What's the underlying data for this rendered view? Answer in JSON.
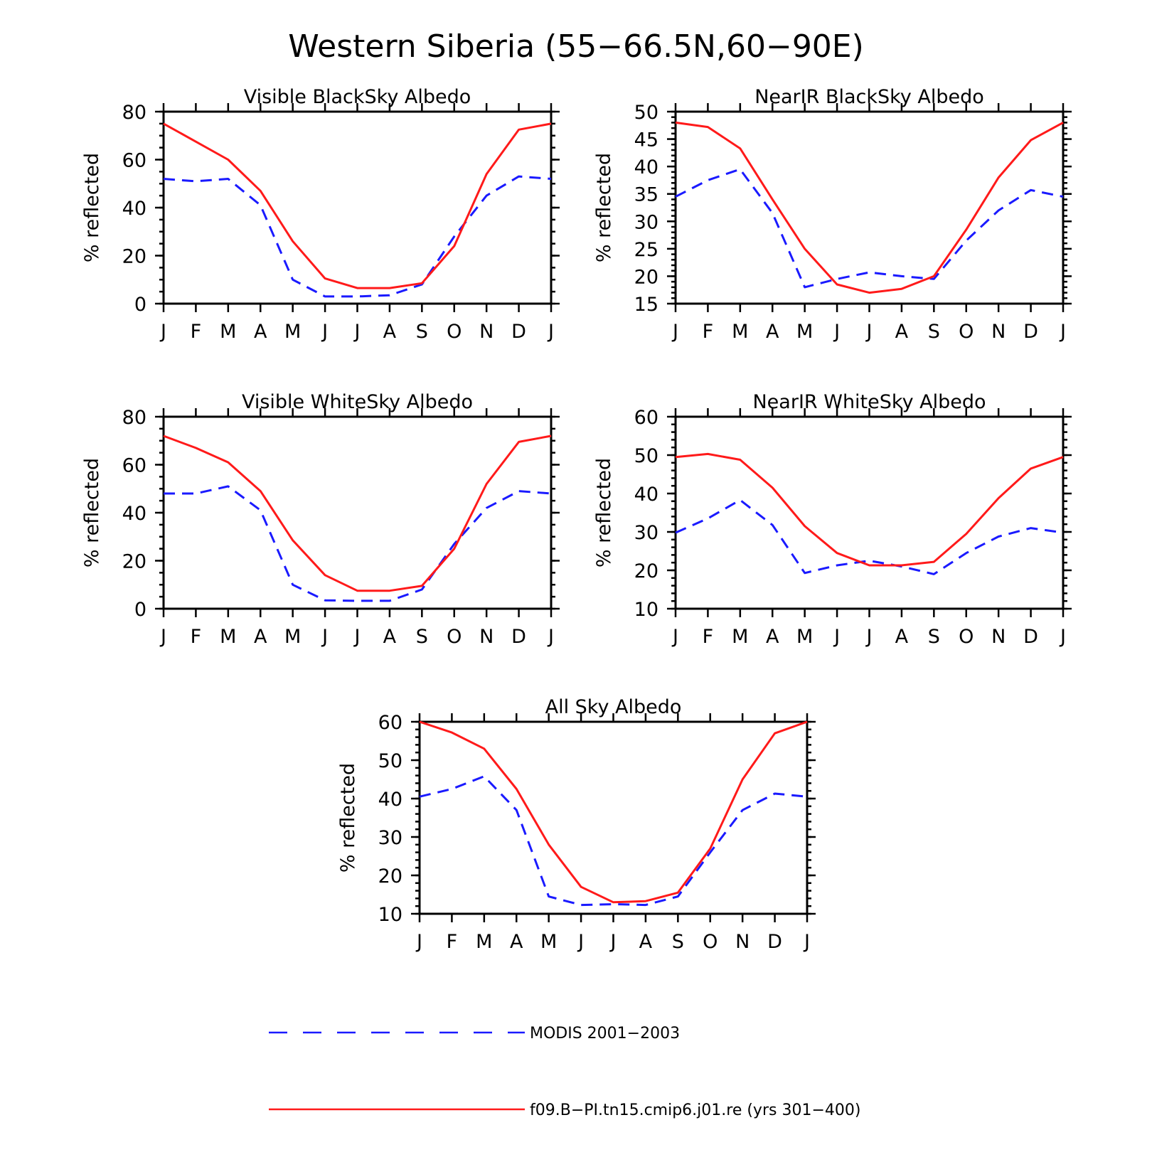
{
  "figure": {
    "title": "Western Siberia (55−66.5N,60−90E)"
  },
  "colors": {
    "modis": "#1a1aff",
    "model": "#ff1a1a"
  },
  "legend": [
    {
      "label": "MODIS 2001−2003",
      "style": "dashed",
      "color": "#1a1aff"
    },
    {
      "label": "f09.B−PI.tn15.cmip6.j01.re (yrs 301−400)",
      "style": "solid",
      "color": "#ff1a1a"
    }
  ],
  "chart_data": [
    {
      "type": "line",
      "title": "Visible BlackSky Albedo",
      "ylabel": "% reflected",
      "categories": [
        "J",
        "F",
        "M",
        "A",
        "M",
        "J",
        "J",
        "A",
        "S",
        "O",
        "N",
        "D",
        "J"
      ],
      "ylim": [
        0,
        80
      ],
      "yticks": [
        0,
        20,
        40,
        60,
        80
      ],
      "yminor": 5,
      "series": [
        {
          "name": "MODIS 2001−2003",
          "style": "dashed",
          "values": [
            52,
            51,
            52,
            41,
            10,
            3,
            3,
            3.5,
            8,
            28,
            45,
            53,
            52
          ]
        },
        {
          "name": "f09.B−PI.tn15.cmip6.j01.re (yrs 301−400)",
          "style": "solid",
          "values": [
            75,
            67.5,
            60,
            47,
            26,
            10.5,
            6.5,
            6.5,
            8.5,
            24,
            54,
            72.5,
            75
          ]
        }
      ]
    },
    {
      "type": "line",
      "title": "NearIR BlackSky Albedo",
      "ylabel": "% reflected",
      "categories": [
        "J",
        "F",
        "M",
        "A",
        "M",
        "J",
        "J",
        "A",
        "S",
        "O",
        "N",
        "D",
        "J"
      ],
      "ylim": [
        15,
        50
      ],
      "yticks": [
        15,
        20,
        25,
        30,
        35,
        40,
        45,
        50
      ],
      "yminor": 1,
      "series": [
        {
          "name": "MODIS 2001−2003",
          "style": "dashed",
          "values": [
            34.5,
            37.5,
            39.5,
            31.5,
            18,
            19.5,
            20.7,
            20,
            19.5,
            26.5,
            32,
            35.7,
            34.5
          ]
        },
        {
          "name": "f09.B−PI.tn15.cmip6.j01.re (yrs 301−400)",
          "style": "solid",
          "values": [
            48,
            47.2,
            43.3,
            34,
            25,
            18.5,
            17,
            17.7,
            20,
            28.5,
            38,
            44.8,
            48
          ]
        }
      ]
    },
    {
      "type": "line",
      "title": "Visible WhiteSky Albedo",
      "ylabel": "% reflected",
      "categories": [
        "J",
        "F",
        "M",
        "A",
        "M",
        "J",
        "J",
        "A",
        "S",
        "O",
        "N",
        "D",
        "J"
      ],
      "ylim": [
        0,
        80
      ],
      "yticks": [
        0,
        20,
        40,
        60,
        80
      ],
      "yminor": 5,
      "series": [
        {
          "name": "MODIS 2001−2003",
          "style": "dashed",
          "values": [
            48,
            48,
            51,
            41,
            10,
            3.5,
            3.3,
            3.3,
            8,
            27,
            42,
            49,
            48
          ]
        },
        {
          "name": "f09.B−PI.tn15.cmip6.j01.re (yrs 301−400)",
          "style": "solid",
          "values": [
            72,
            67,
            61,
            49,
            28.5,
            14,
            7.5,
            7.5,
            9.5,
            25,
            52,
            69.5,
            72
          ]
        }
      ]
    },
    {
      "type": "line",
      "title": "NearIR WhiteSky Albedo",
      "ylabel": "% reflected",
      "categories": [
        "J",
        "F",
        "M",
        "A",
        "M",
        "J",
        "J",
        "A",
        "S",
        "O",
        "N",
        "D",
        "J"
      ],
      "ylim": [
        10,
        60
      ],
      "yticks": [
        10,
        20,
        30,
        40,
        50,
        60
      ],
      "yminor": 2,
      "series": [
        {
          "name": "MODIS 2001−2003",
          "style": "dashed",
          "values": [
            29.8,
            33.5,
            38.3,
            31.8,
            19.3,
            21.3,
            22.5,
            21,
            19,
            24.5,
            28.8,
            31,
            29.8
          ]
        },
        {
          "name": "f09.B−PI.tn15.cmip6.j01.re (yrs 301−400)",
          "style": "solid",
          "values": [
            49.5,
            50.3,
            48.8,
            41.5,
            31.5,
            24.5,
            21.3,
            21.3,
            22.2,
            29.5,
            38.8,
            46.5,
            49.5
          ]
        }
      ]
    },
    {
      "type": "line",
      "title": "All Sky Albedo",
      "ylabel": "% reflected",
      "categories": [
        "J",
        "F",
        "M",
        "A",
        "M",
        "J",
        "J",
        "A",
        "S",
        "O",
        "N",
        "D",
        "J"
      ],
      "ylim": [
        10,
        60
      ],
      "yticks": [
        10,
        20,
        30,
        40,
        50,
        60
      ],
      "yminor": 2,
      "series": [
        {
          "name": "MODIS 2001−2003",
          "style": "dashed",
          "values": [
            40.5,
            42.5,
            45.8,
            37,
            14.5,
            12.3,
            12.5,
            12.3,
            14.5,
            26,
            37,
            41.3,
            40.5
          ]
        },
        {
          "name": "f09.B−PI.tn15.cmip6.j01.re (yrs 301−400)",
          "style": "solid",
          "values": [
            60,
            57.2,
            53,
            42.5,
            28,
            17,
            13,
            13.3,
            15.5,
            27,
            45,
            57,
            60
          ]
        }
      ]
    }
  ]
}
